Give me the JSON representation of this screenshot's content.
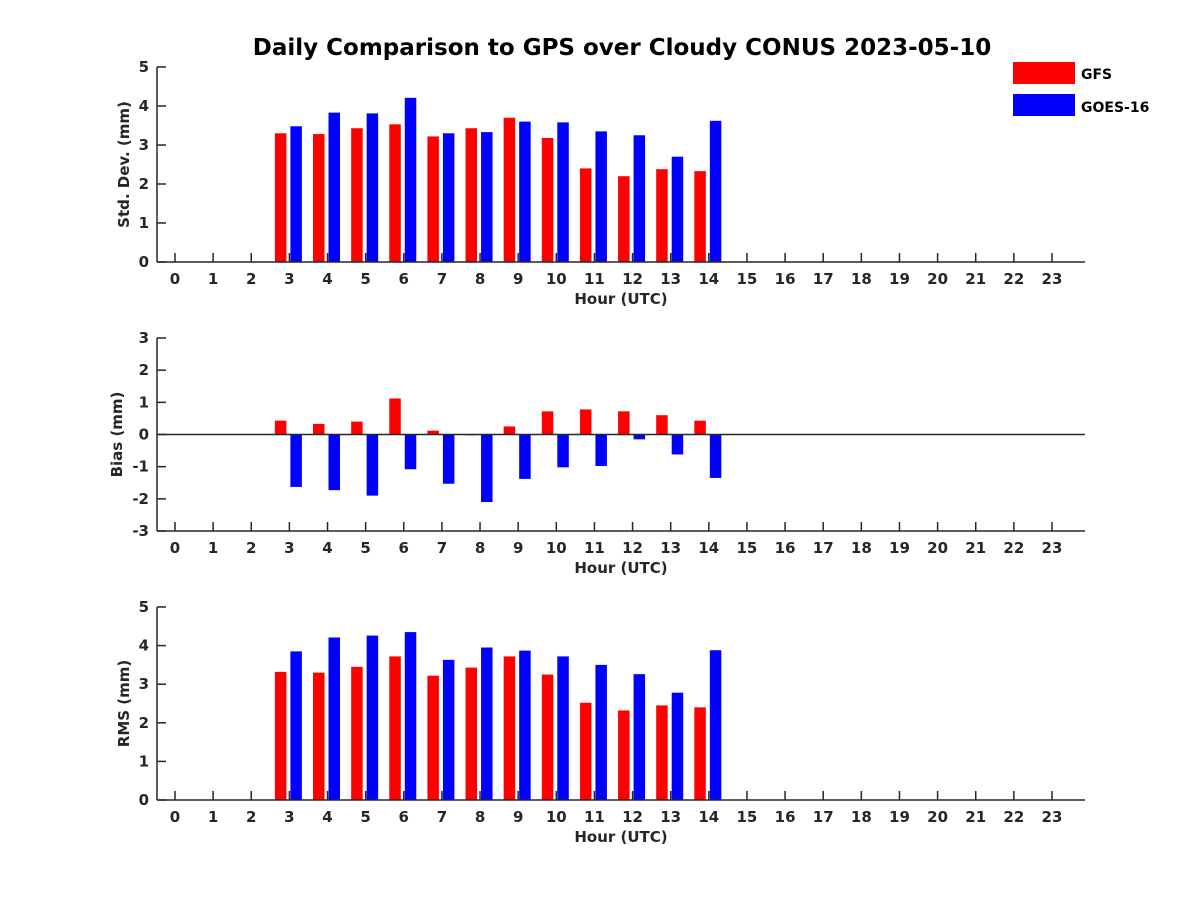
{
  "title": "Daily Comparison to GPS over Cloudy CONUS 2023-05-10",
  "legend": [
    {
      "name": "GFS",
      "color": "#ff0000"
    },
    {
      "name": "GOES-16",
      "color": "#0000ff"
    }
  ],
  "chart_data": [
    {
      "type": "bar",
      "xlabel": "Hour (UTC)",
      "ylabel": "Std. Dev. (mm)",
      "x": [
        0,
        1,
        2,
        3,
        4,
        5,
        6,
        7,
        8,
        9,
        10,
        11,
        12,
        13,
        14,
        15,
        16,
        17,
        18,
        19,
        20,
        21,
        22,
        23
      ],
      "ylim": [
        0,
        5
      ],
      "yticks": [
        0,
        1,
        2,
        3,
        4,
        5
      ],
      "series": [
        {
          "name": "GFS",
          "color": "#ff0000",
          "values": [
            null,
            null,
            null,
            3.3,
            3.28,
            3.43,
            3.53,
            3.22,
            3.43,
            3.7,
            3.18,
            2.4,
            2.2,
            2.38,
            2.33,
            null,
            null,
            null,
            null,
            null,
            null,
            null,
            null,
            null
          ]
        },
        {
          "name": "GOES-16",
          "color": "#0000ff",
          "values": [
            null,
            null,
            null,
            3.48,
            3.83,
            3.81,
            4.21,
            3.3,
            3.33,
            3.6,
            3.58,
            3.35,
            3.25,
            2.7,
            3.62,
            null,
            null,
            null,
            null,
            null,
            null,
            null,
            null,
            null
          ]
        }
      ],
      "legend": "top-right"
    },
    {
      "type": "bar",
      "xlabel": "Hour (UTC)",
      "ylabel": "Bias (mm)",
      "x": [
        0,
        1,
        2,
        3,
        4,
        5,
        6,
        7,
        8,
        9,
        10,
        11,
        12,
        13,
        14,
        15,
        16,
        17,
        18,
        19,
        20,
        21,
        22,
        23
      ],
      "ylim": [
        -3,
        3
      ],
      "yticks": [
        -3,
        -2,
        -1,
        0,
        1,
        2,
        3
      ],
      "series": [
        {
          "name": "GFS",
          "color": "#ff0000",
          "values": [
            null,
            null,
            null,
            0.43,
            0.33,
            0.4,
            1.12,
            0.12,
            -0.02,
            0.25,
            0.72,
            0.78,
            0.72,
            0.6,
            0.43,
            null,
            null,
            null,
            null,
            null,
            null,
            null,
            null,
            null
          ]
        },
        {
          "name": "GOES-16",
          "color": "#0000ff",
          "values": [
            null,
            null,
            null,
            -1.63,
            -1.73,
            -1.9,
            -1.08,
            -1.53,
            -2.1,
            -1.38,
            -1.02,
            -0.98,
            -0.15,
            -0.62,
            -1.35,
            null,
            null,
            null,
            null,
            null,
            null,
            null,
            null,
            null
          ]
        }
      ]
    },
    {
      "type": "bar",
      "xlabel": "Hour (UTC)",
      "ylabel": "RMS (mm)",
      "x": [
        0,
        1,
        2,
        3,
        4,
        5,
        6,
        7,
        8,
        9,
        10,
        11,
        12,
        13,
        14,
        15,
        16,
        17,
        18,
        19,
        20,
        21,
        22,
        23
      ],
      "ylim": [
        0,
        5
      ],
      "yticks": [
        0,
        1,
        2,
        3,
        4,
        5
      ],
      "series": [
        {
          "name": "GFS",
          "color": "#ff0000",
          "values": [
            null,
            null,
            null,
            3.32,
            3.3,
            3.45,
            3.72,
            3.22,
            3.43,
            3.72,
            3.25,
            2.52,
            2.32,
            2.45,
            2.4,
            null,
            null,
            null,
            null,
            null,
            null,
            null,
            null,
            null
          ]
        },
        {
          "name": "GOES-16",
          "color": "#0000ff",
          "values": [
            null,
            null,
            null,
            3.85,
            4.21,
            4.26,
            4.35,
            3.63,
            3.95,
            3.87,
            3.72,
            3.5,
            3.26,
            2.78,
            3.88,
            null,
            null,
            null,
            null,
            null,
            null,
            null,
            null,
            null
          ]
        }
      ]
    }
  ]
}
